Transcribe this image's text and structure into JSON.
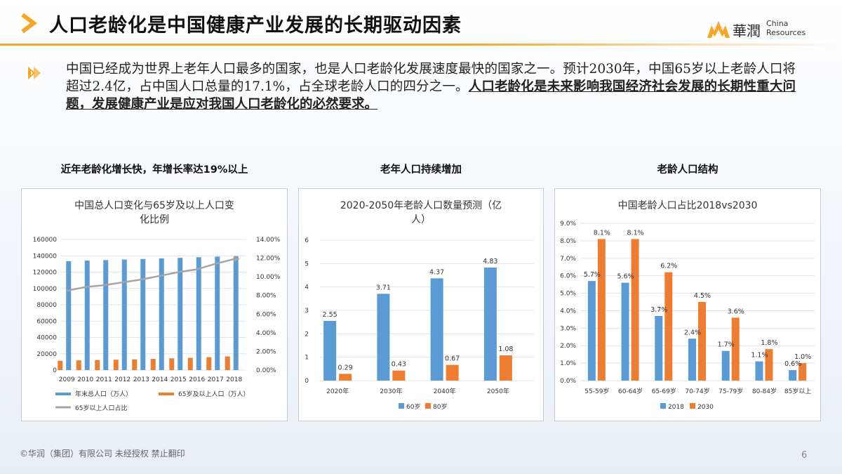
{
  "title": "人口老龄化是中国健康产业发展的长期驱动因素",
  "logo": {
    "cn": "華潤",
    "en_line1": "China",
    "en_line2": "Resources"
  },
  "intro": {
    "normal": "中国已经成为世界上老年人口最多的国家，也是人口老龄化发展速度最快的国家之一。预计2030年，中国65岁以上老龄人口将超过2.4亿，占中国人口总量的17.1%，占全球老龄人口的四分之一。",
    "bold": "人口老龄化是未来影响我国经济社会发展的长期性重大问题，发展健康产业是应对我国人口老龄化的必然要求。"
  },
  "sections": [
    "近年老龄化增长快，年增长率达19%以上",
    "老年人口持续增加",
    "老龄人口结构"
  ],
  "colors": {
    "blue": "#5b9bd5",
    "orange": "#ed7d31",
    "gray": "#a5a5a5",
    "accent": "#f6a623"
  },
  "chart_data": [
    {
      "type": "bar",
      "title_lines": [
        "中国总人口变化与65岁及以上人口变",
        "化比例"
      ],
      "categories": [
        "2009",
        "2010",
        "2011",
        "2012",
        "2013",
        "2014",
        "2015",
        "2016",
        "2017",
        "2018"
      ],
      "series": [
        {
          "name": "年末总人口（万人）",
          "axis": "left",
          "type": "bar",
          "values": [
            133450,
            134091,
            134735,
            135404,
            136072,
            136782,
            137462,
            138271,
            139008,
            139538
          ]
        },
        {
          "name": "65岁及以上人口（万人）",
          "axis": "left",
          "type": "bar",
          "values": [
            11307,
            11894,
            12288,
            12714,
            13161,
            13755,
            14386,
            15003,
            15831,
            16658
          ]
        },
        {
          "name": "65岁以上人口占比",
          "axis": "right",
          "type": "line",
          "values": [
            8.5,
            8.9,
            9.1,
            9.4,
            9.7,
            10.1,
            10.5,
            10.8,
            11.4,
            11.9
          ]
        }
      ],
      "ylim": [
        0,
        160000
      ],
      "yticks": [
        "0",
        "20000",
        "40000",
        "60000",
        "80000",
        "100000",
        "120000",
        "140000",
        "160000"
      ],
      "y2lim": [
        0,
        14
      ],
      "y2ticks": [
        "0.00%",
        "2.00%",
        "4.00%",
        "6.00%",
        "8.00%",
        "10.00%",
        "12.00%",
        "14.00%"
      ],
      "legend": "bottom"
    },
    {
      "type": "bar",
      "title_lines": [
        "2020-2050年老龄人口数量预测（亿",
        "人）"
      ],
      "categories": [
        "2020年",
        "2030年",
        "2040年",
        "2050年"
      ],
      "series": [
        {
          "name": "60岁",
          "values": [
            2.55,
            3.71,
            4.37,
            4.83
          ],
          "labels": [
            "2.55",
            "3.71",
            "4.37",
            "4.83"
          ]
        },
        {
          "name": "80岁",
          "values": [
            0.29,
            0.43,
            0.67,
            1.08
          ],
          "labels": [
            "0.29",
            "0.43",
            "0.67",
            "1.08"
          ]
        }
      ],
      "ylim": [
        0,
        6
      ],
      "yticks": [
        "0",
        "1",
        "2",
        "3",
        "4",
        "5",
        "6"
      ],
      "legend": "bottom"
    },
    {
      "type": "bar",
      "title_lines": [
        "中国老龄人口占比2018vs2030"
      ],
      "categories": [
        "55-59岁",
        "60-64岁",
        "65-69岁",
        "70-74岁",
        "75-79岁",
        "80-84岁",
        "85岁以上"
      ],
      "series": [
        {
          "name": "2018",
          "values": [
            5.7,
            5.6,
            3.7,
            2.4,
            1.7,
            1.1,
            0.6
          ],
          "labels": [
            "5.7%",
            "5.6%",
            "3.7%",
            "2.4%",
            "1.7%",
            "1.1%",
            "0.6%"
          ]
        },
        {
          "name": "2030",
          "values": [
            8.1,
            8.1,
            6.2,
            4.5,
            3.6,
            1.8,
            1.0
          ],
          "labels": [
            "8.1%",
            "8.1%",
            "6.2%",
            "4.5%",
            "3.6%",
            "1.8%",
            "1.0%"
          ]
        }
      ],
      "ylim": [
        0,
        9
      ],
      "yticks": [
        "0.0%",
        "1.0%",
        "2.0%",
        "3.0%",
        "4.0%",
        "5.0%",
        "6.0%",
        "7.0%",
        "8.0%",
        "9.0%"
      ],
      "legend": "bottom"
    }
  ],
  "footer": "©华润（集团）有限公司 未经授权 禁止翻印",
  "page_number": "6"
}
